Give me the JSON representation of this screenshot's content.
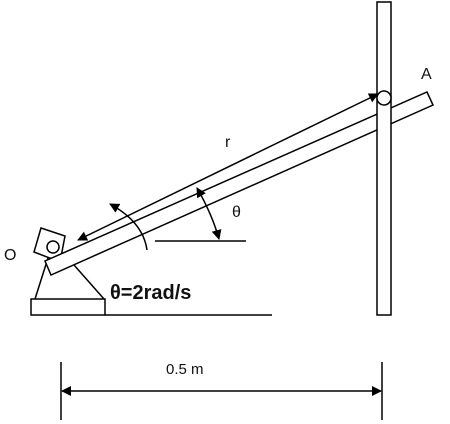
{
  "labels": {
    "origin": "O",
    "end": "A",
    "radius": "r",
    "angle": "θ",
    "angular_speed": "θ=2rad/s",
    "distance": "0.5 m"
  },
  "colors": {
    "stroke": "#000000",
    "fill": "#ffffff"
  }
}
